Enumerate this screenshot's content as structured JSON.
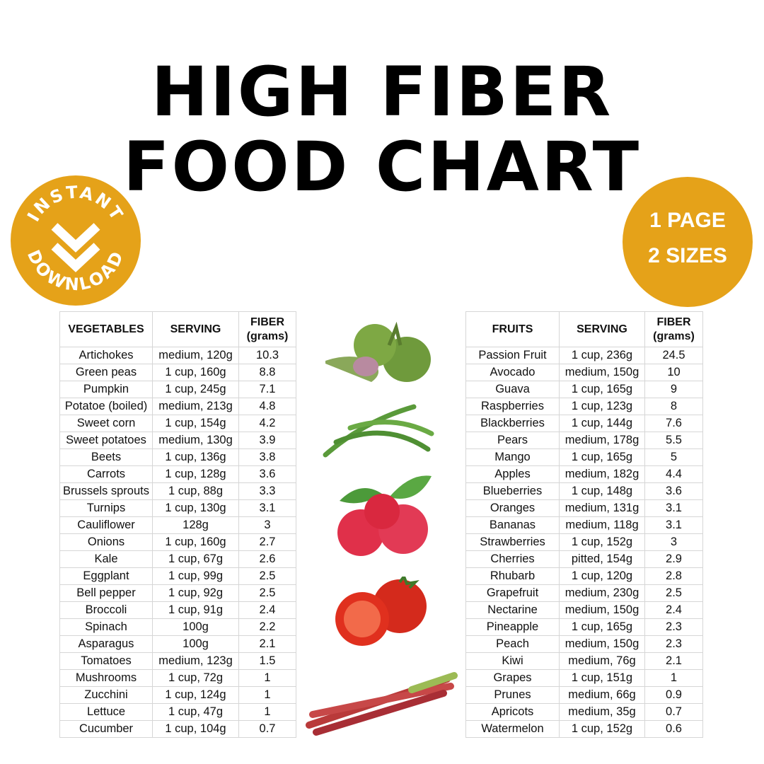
{
  "title": {
    "line1": "HIGH FIBER",
    "line2": "FOOD CHART"
  },
  "badges": {
    "instant_download": {
      "top": "INSTANT",
      "bottom": "DOWNLOAD",
      "icon": "double-chevron-down-icon",
      "color": "#E5A219"
    },
    "pages": {
      "line1": "1 PAGE",
      "line2": "2 SIZES",
      "color": "#E5A219"
    }
  },
  "vegetables": {
    "headers": [
      "VEGETABLES",
      "SERVING",
      "FIBER",
      "(grams)"
    ],
    "rows": [
      [
        "Artichokes",
        "medium, 120g",
        "10.3"
      ],
      [
        "Green peas",
        "1 cup, 160g",
        "8.8"
      ],
      [
        "Pumpkin",
        "1 cup, 245g",
        "7.1"
      ],
      [
        "Potatoe (boiled)",
        "medium, 213g",
        "4.8"
      ],
      [
        "Sweet corn",
        "1 cup, 154g",
        "4.2"
      ],
      [
        "Sweet potatoes",
        "medium, 130g",
        "3.9"
      ],
      [
        "Beets",
        "1 cup, 136g",
        "3.8"
      ],
      [
        "Carrots",
        "1 cup, 128g",
        "3.6"
      ],
      [
        "Brussels sprouts",
        "1 cup, 88g",
        "3.3"
      ],
      [
        "Turnips",
        "1 cup, 130g",
        "3.1"
      ],
      [
        "Cauliflower",
        "128g",
        "3"
      ],
      [
        "Onions",
        "1 cup, 160g",
        "2.7"
      ],
      [
        "Kale",
        "1 cup, 67g",
        "2.6"
      ],
      [
        "Eggplant",
        "1 cup, 99g",
        "2.5"
      ],
      [
        "Bell pepper",
        "1 cup, 92g",
        "2.5"
      ],
      [
        "Broccoli",
        "1 cup, 91g",
        "2.4"
      ],
      [
        "Spinach",
        "100g",
        "2.2"
      ],
      [
        "Asparagus",
        "100g",
        "2.1"
      ],
      [
        "Tomatoes",
        "medium, 123g",
        "1.5"
      ],
      [
        "Mushrooms",
        "1 cup, 72g",
        "1"
      ],
      [
        "Zucchini",
        "1 cup, 124g",
        "1"
      ],
      [
        "Lettuce",
        "1 cup, 47g",
        "1"
      ],
      [
        "Cucumber",
        "1 cup, 104g",
        "0.7"
      ]
    ]
  },
  "fruits": {
    "headers": [
      "FRUITS",
      "SERVING",
      "FIBER",
      "(grams)"
    ],
    "rows": [
      [
        "Passion Fruit",
        "1 cup, 236g",
        "24.5"
      ],
      [
        "Avocado",
        "medium, 150g",
        "10"
      ],
      [
        "Guava",
        "1 cup, 165g",
        "9"
      ],
      [
        "Raspberries",
        "1 cup, 123g",
        "8"
      ],
      [
        "Blackberries",
        "1 cup, 144g",
        "7.6"
      ],
      [
        "Pears",
        "medium, 178g",
        "5.5"
      ],
      [
        "Mango",
        "1 cup, 165g",
        "5"
      ],
      [
        "Apples",
        "medium, 182g",
        "4.4"
      ],
      [
        "Blueberries",
        "1 cup, 148g",
        "3.6"
      ],
      [
        "Oranges",
        "medium, 131g",
        "3.1"
      ],
      [
        "Bananas",
        "medium, 118g",
        "3.1"
      ],
      [
        "Strawberries",
        "1 cup, 152g",
        "3"
      ],
      [
        "Cherries",
        "pitted, 154g",
        "2.9"
      ],
      [
        "Rhubarb",
        "1 cup, 120g",
        "2.8"
      ],
      [
        "Grapefruit",
        "medium, 230g",
        "2.5"
      ],
      [
        "Nectarine",
        "medium, 150g",
        "2.4"
      ],
      [
        "Pineapple",
        "1 cup, 165g",
        "2.3"
      ],
      [
        "Peach",
        "medium, 150g",
        "2.3"
      ],
      [
        "Kiwi",
        "medium, 76g",
        "2.1"
      ],
      [
        "Grapes",
        "1 cup, 151g",
        "1"
      ],
      [
        "Prunes",
        "medium, 66g",
        "0.9"
      ],
      [
        "Apricots",
        "medium, 35g",
        "0.7"
      ],
      [
        "Watermelon",
        "1 cup, 152g",
        "0.6"
      ]
    ]
  },
  "images": [
    "artichoke",
    "green-beans",
    "raspberries",
    "tomatoes",
    "rhubarb"
  ]
}
